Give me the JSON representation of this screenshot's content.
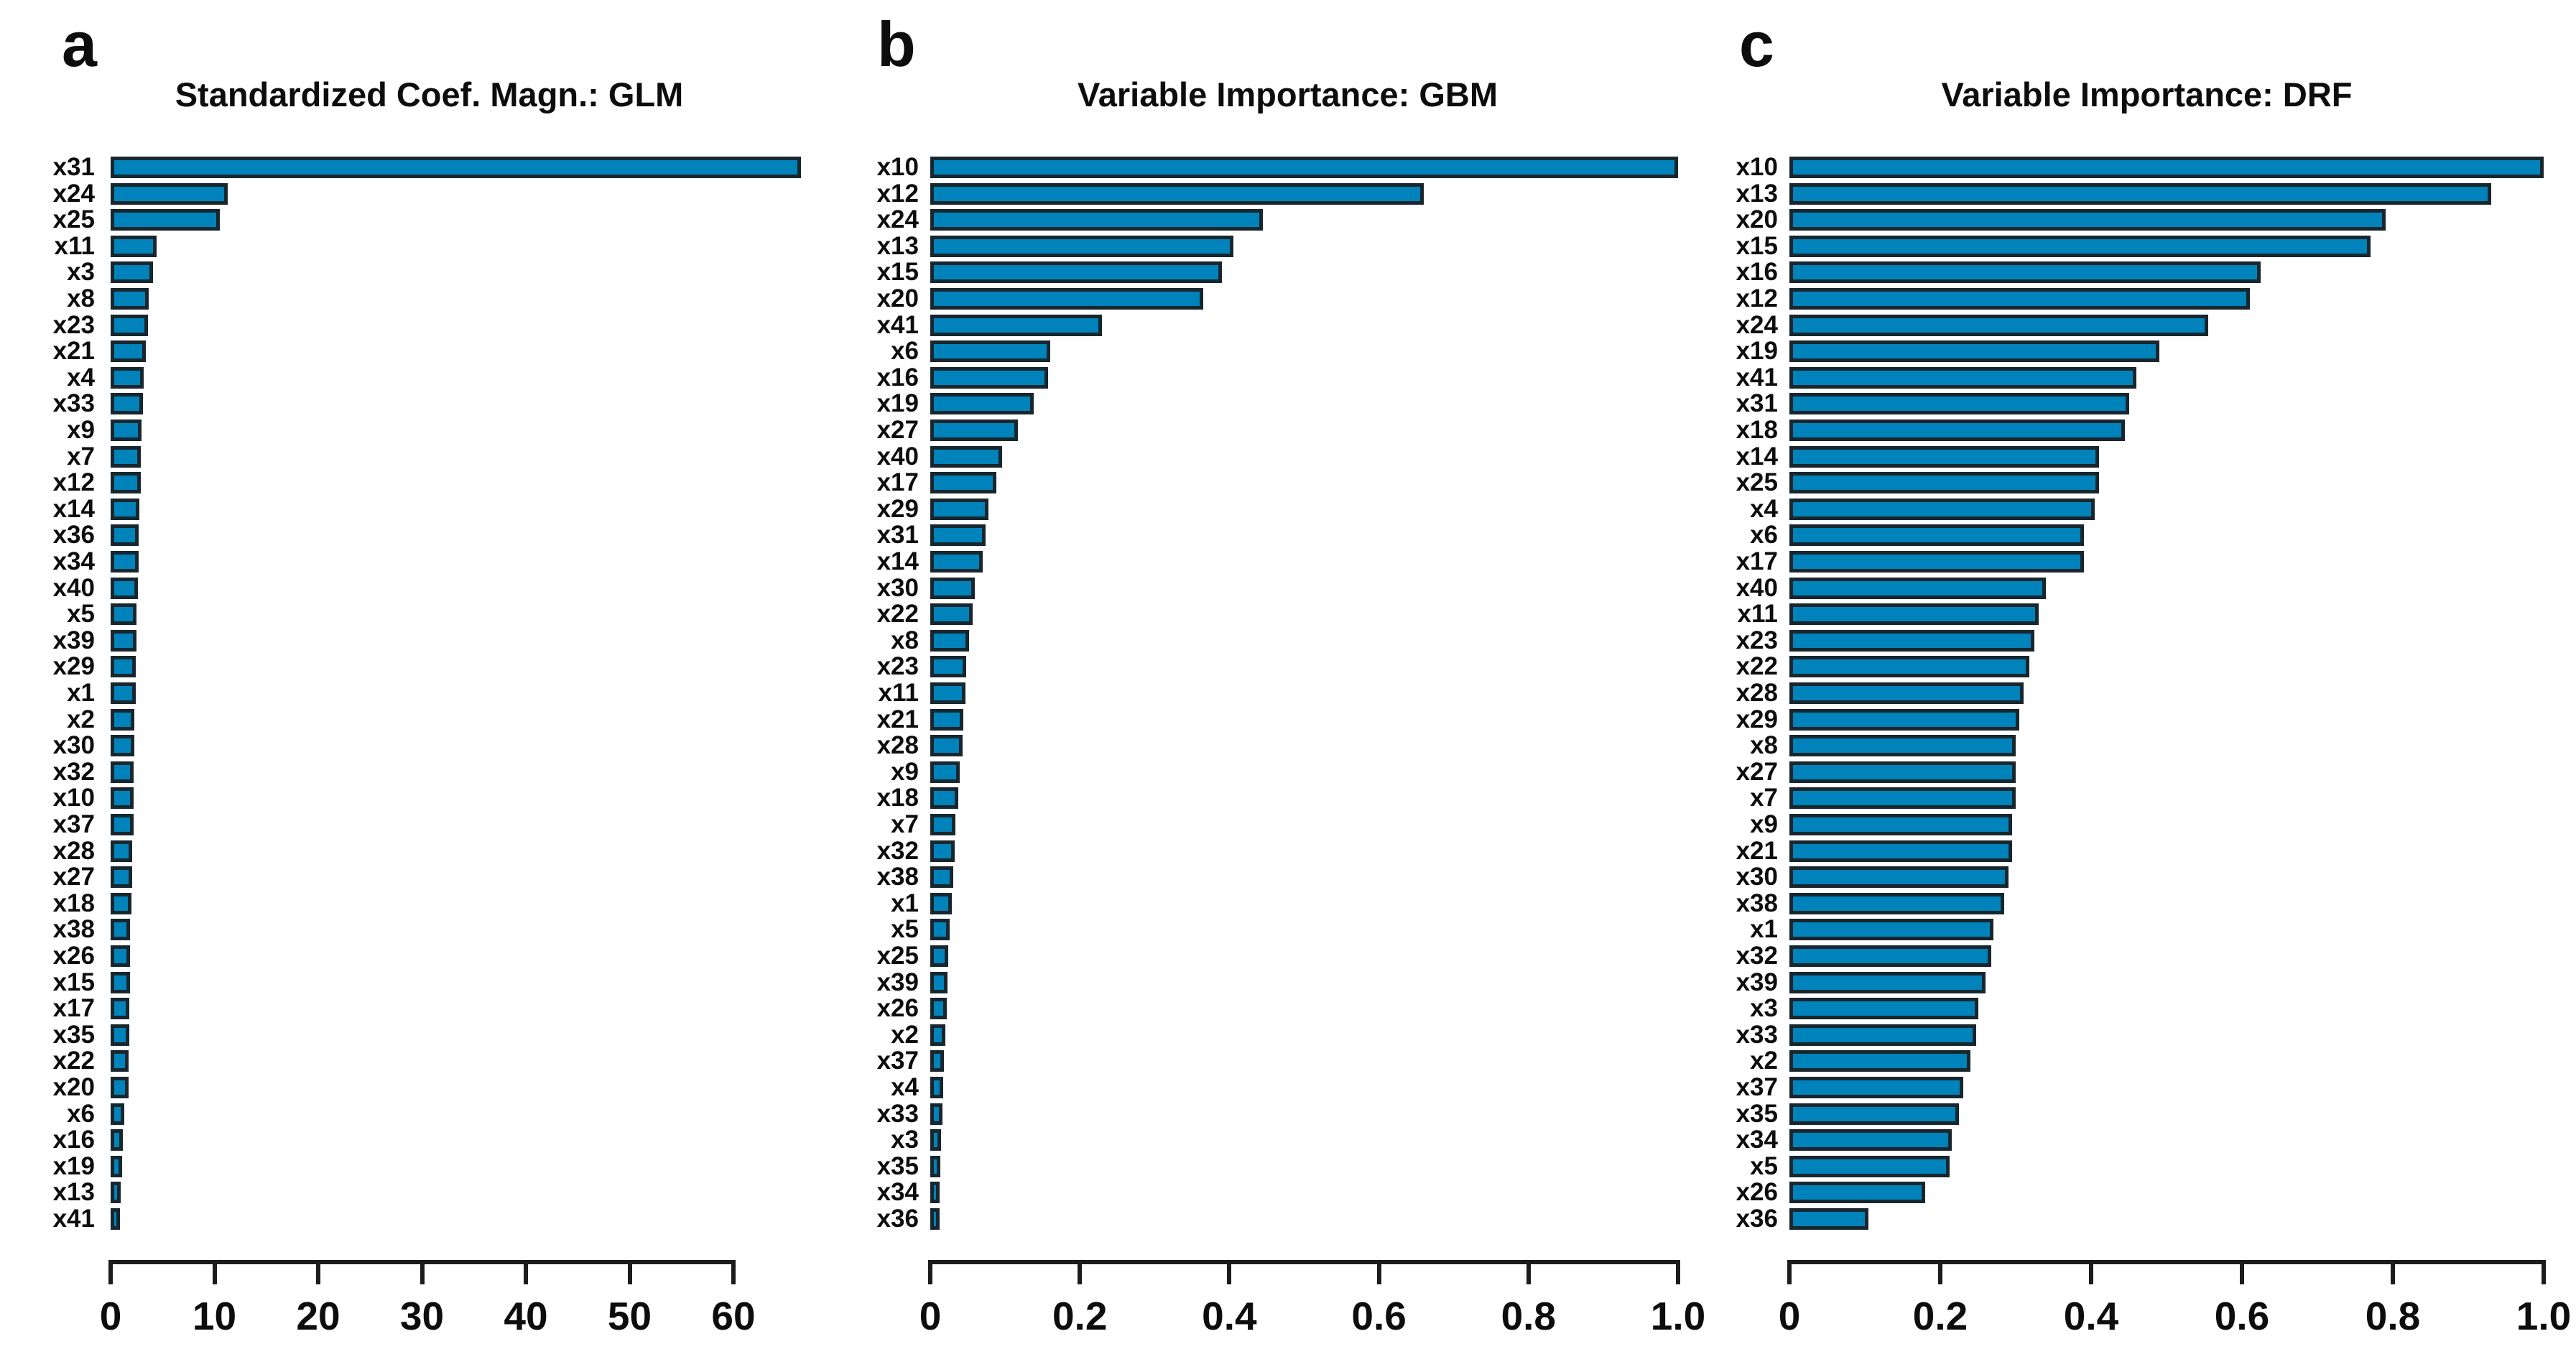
{
  "figure": {
    "background": "#ffffff",
    "bar_fill_color": "#0083ba",
    "bar_border_color": "#18262e",
    "axis_color": "#1c1c1c",
    "text_color": "#0d0d0d"
  },
  "chart_data": [
    {
      "type": "bar",
      "orientation": "horizontal",
      "letter": "a",
      "title": "Standardized Coef. Magn.: GLM",
      "xlim": [
        0,
        67
      ],
      "xticks": [
        0,
        10,
        20,
        30,
        40,
        50,
        60
      ],
      "xtick_labels": [
        "0",
        "10",
        "20",
        "30",
        "40",
        "50",
        "60"
      ],
      "grid": false,
      "legend": "none",
      "categories": [
        "x31",
        "x24",
        "x25",
        "x11",
        "x3",
        "x8",
        "x23",
        "x21",
        "x4",
        "x33",
        "x9",
        "x7",
        "x12",
        "x14",
        "x36",
        "x34",
        "x40",
        "x5",
        "x39",
        "x29",
        "x1",
        "x2",
        "x30",
        "x32",
        "x10",
        "x37",
        "x28",
        "x27",
        "x18",
        "x38",
        "x26",
        "x15",
        "x17",
        "x35",
        "x22",
        "x20",
        "x6",
        "x16",
        "x19",
        "x13",
        "x41"
      ],
      "values": [
        66.5,
        11.3,
        10.5,
        4.4,
        4.1,
        3.7,
        3.6,
        3.4,
        3.2,
        3.1,
        3.0,
        2.9,
        2.9,
        2.8,
        2.7,
        2.7,
        2.6,
        2.5,
        2.5,
        2.4,
        2.4,
        2.3,
        2.3,
        2.2,
        2.2,
        2.2,
        2.1,
        2.1,
        2.0,
        1.9,
        1.9,
        1.9,
        1.8,
        1.8,
        1.7,
        1.7,
        1.3,
        1.2,
        1.1,
        1.0,
        0.5
      ]
    },
    {
      "type": "bar",
      "orientation": "horizontal",
      "letter": "b",
      "title": "Variable Importance: GBM",
      "xlim": [
        0,
        1.0
      ],
      "xticks": [
        0,
        0.2,
        0.4,
        0.6,
        0.8,
        1.0
      ],
      "xtick_labels": [
        "0",
        "0.2",
        "0.4",
        "0.6",
        "0.8",
        "1.0"
      ],
      "grid": false,
      "legend": "none",
      "categories": [
        "x10",
        "x12",
        "x24",
        "x13",
        "x15",
        "x20",
        "x41",
        "x6",
        "x16",
        "x19",
        "x27",
        "x40",
        "x17",
        "x29",
        "x31",
        "x14",
        "x30",
        "x22",
        "x8",
        "x23",
        "x11",
        "x21",
        "x28",
        "x9",
        "x18",
        "x7",
        "x32",
        "x38",
        "x1",
        "x5",
        "x25",
        "x39",
        "x26",
        "x2",
        "x37",
        "x4",
        "x33",
        "x3",
        "x35",
        "x34",
        "x36"
      ],
      "values": [
        1.0,
        0.66,
        0.445,
        0.405,
        0.39,
        0.365,
        0.23,
        0.16,
        0.158,
        0.138,
        0.117,
        0.096,
        0.088,
        0.078,
        0.074,
        0.07,
        0.06,
        0.057,
        0.052,
        0.048,
        0.047,
        0.044,
        0.043,
        0.039,
        0.037,
        0.034,
        0.033,
        0.031,
        0.029,
        0.026,
        0.024,
        0.023,
        0.022,
        0.02,
        0.018,
        0.017,
        0.016,
        0.014,
        0.013,
        0.012,
        0.006
      ]
    },
    {
      "type": "bar",
      "orientation": "horizontal",
      "letter": "c",
      "title": "Variable Importance: DRF",
      "xlim": [
        0,
        1.0
      ],
      "xticks": [
        0,
        0.2,
        0.4,
        0.6,
        0.8,
        1.0
      ],
      "xtick_labels": [
        "0",
        "0.2",
        "0.4",
        "0.6",
        "0.8",
        "1.0"
      ],
      "grid": false,
      "legend": "none",
      "categories": [
        "x10",
        "x13",
        "x20",
        "x15",
        "x16",
        "x12",
        "x24",
        "x19",
        "x41",
        "x31",
        "x18",
        "x14",
        "x25",
        "x4",
        "x6",
        "x17",
        "x40",
        "x11",
        "x23",
        "x22",
        "x28",
        "x29",
        "x8",
        "x27",
        "x7",
        "x9",
        "x21",
        "x30",
        "x38",
        "x1",
        "x32",
        "x39",
        "x3",
        "x33",
        "x2",
        "x37",
        "x35",
        "x34",
        "x5",
        "x26",
        "x36"
      ],
      "values": [
        1.0,
        0.93,
        0.79,
        0.77,
        0.625,
        0.61,
        0.555,
        0.49,
        0.46,
        0.45,
        0.445,
        0.41,
        0.41,
        0.405,
        0.39,
        0.39,
        0.34,
        0.33,
        0.325,
        0.318,
        0.31,
        0.305,
        0.3,
        0.3,
        0.3,
        0.295,
        0.295,
        0.29,
        0.285,
        0.27,
        0.268,
        0.26,
        0.25,
        0.248,
        0.24,
        0.23,
        0.225,
        0.215,
        0.212,
        0.18,
        0.105
      ]
    }
  ]
}
